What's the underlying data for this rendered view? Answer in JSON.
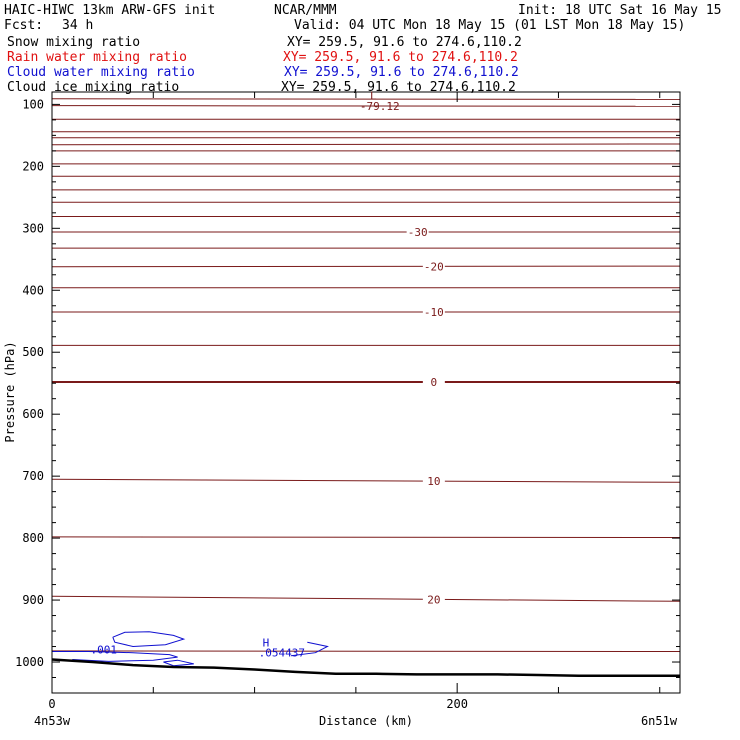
{
  "header": {
    "model": "HAIC-HIWC 13km ARW-GFS init",
    "org": "NCAR/MMM",
    "init": "Init: 18 UTC Sat 16 May 15",
    "fcst_label": "Fcst:",
    "fcst_value": "34 h",
    "valid": "Valid: 04 UTC Mon 18 May 15 (01 LST Mon 18 May 15)"
  },
  "fields": [
    {
      "name": "Snow mixing ratio",
      "xy": "XY= 259.5, 91.6 to 274.6,110.2",
      "color": "#000000"
    },
    {
      "name": "Rain water mixing ratio",
      "xy": "XY= 259.5, 91.6 to 274.6,110.2",
      "color": "#e01010"
    },
    {
      "name": "Cloud water mixing ratio",
      "xy": "XY= 259.5, 91.6 to 274.6,110.2",
      "color": "#1010d0"
    },
    {
      "name": "Cloud ice mixing ratio",
      "xy": "XY= 259.5, 91.6 to 274.6,110.2",
      "color": "#000000"
    }
  ],
  "colors": {
    "temperature_contour": "#7a1a1a",
    "cloud_water_contour": "#1010d0",
    "terrain": "#000000"
  },
  "chart_data": {
    "type": "line",
    "xlabel": "Distance (km)",
    "ylabel": "Pressure (hPa)",
    "xlim": [
      0,
      310
    ],
    "ylim": [
      1050,
      80
    ],
    "x_ticks": [
      0,
      200
    ],
    "x_minor_ticks": [
      50,
      100,
      150,
      250,
      300
    ],
    "y_ticks": [
      100,
      200,
      300,
      400,
      500,
      600,
      700,
      800,
      900,
      1000
    ],
    "y_minor_step": 25,
    "x_endpoint_labels": [
      "4n53w",
      "6n51w"
    ],
    "temperature_contours": [
      {
        "label": "",
        "p": [
          91,
          92
        ]
      },
      {
        "label": "",
        "p": [
          102,
          103
        ]
      },
      {
        "label": "",
        "p": [
          124,
          124
        ]
      },
      {
        "label": "",
        "p": [
          144,
          144
        ]
      },
      {
        "label": "",
        "p": [
          154,
          154
        ]
      },
      {
        "label": "",
        "p": [
          165,
          164
        ]
      },
      {
        "label": "",
        "p": [
          175,
          175
        ]
      },
      {
        "label": "",
        "p": [
          196,
          196
        ]
      },
      {
        "label": "",
        "p": [
          216,
          216
        ]
      },
      {
        "label": "",
        "p": [
          238,
          238
        ]
      },
      {
        "label": "",
        "p": [
          258,
          258
        ]
      },
      {
        "label": "",
        "p": [
          281,
          281
        ]
      },
      {
        "label": "-30",
        "p": [
          306,
          306
        ],
        "label_x": 180
      },
      {
        "label": "",
        "p": [
          332,
          332
        ]
      },
      {
        "label": "-20",
        "p": [
          362,
          361
        ],
        "label_x": 188
      },
      {
        "label": "",
        "p": [
          396,
          396
        ]
      },
      {
        "label": "-10",
        "p": [
          435,
          435
        ],
        "label_x": 188
      },
      {
        "label": "",
        "p": [
          489,
          489
        ]
      },
      {
        "label": "0",
        "p": [
          548,
          548
        ],
        "label_x": 188,
        "bold": true
      },
      {
        "label": "10",
        "p": [
          705,
          710
        ],
        "label_x": 188
      },
      {
        "label": "",
        "p": [
          798,
          799
        ]
      },
      {
        "label": "20",
        "p": [
          894,
          902
        ],
        "label_x": 188
      },
      {
        "label": "",
        "p": [
          982,
          983
        ]
      }
    ],
    "annotations": [
      {
        "text": "L",
        "x": 157,
        "p": 92
      },
      {
        "text": "-79.12",
        "x": 152,
        "p": 109
      },
      {
        "text": ".001",
        "x": 19,
        "p": 986
      },
      {
        "text": "H",
        "x": 104,
        "p": 975
      },
      {
        "text": ".054437",
        "x": 102,
        "p": 991
      }
    ],
    "terrain_p": [
      [
        0,
        996
      ],
      [
        20,
        1000
      ],
      [
        40,
        1005
      ],
      [
        60,
        1008
      ],
      [
        80,
        1009
      ],
      [
        100,
        1012
      ],
      [
        120,
        1016
      ],
      [
        140,
        1019
      ],
      [
        160,
        1019
      ],
      [
        180,
        1020
      ],
      [
        200,
        1020
      ],
      [
        220,
        1020
      ],
      [
        240,
        1021
      ],
      [
        260,
        1022
      ],
      [
        280,
        1022
      ],
      [
        310,
        1022
      ]
    ],
    "cloud_water_contours": [
      [
        [
          30,
          960
        ],
        [
          36,
          952
        ],
        [
          48,
          951
        ],
        [
          60,
          957
        ],
        [
          65,
          963
        ],
        [
          56,
          972
        ],
        [
          40,
          975
        ],
        [
          31,
          968
        ],
        [
          30,
          960
        ]
      ],
      [
        [
          0,
          983
        ],
        [
          18,
          983
        ],
        [
          40,
          985
        ],
        [
          58,
          988
        ],
        [
          62,
          992
        ],
        [
          50,
          997
        ],
        [
          28,
          999
        ],
        [
          10,
          996
        ]
      ],
      [
        [
          55,
          1000
        ],
        [
          62,
          997
        ],
        [
          70,
          1003
        ],
        [
          60,
          1006
        ],
        [
          55,
          1000
        ]
      ],
      [
        [
          126,
          968
        ],
        [
          136,
          975
        ],
        [
          130,
          985
        ],
        [
          118,
          990
        ]
      ]
    ]
  }
}
